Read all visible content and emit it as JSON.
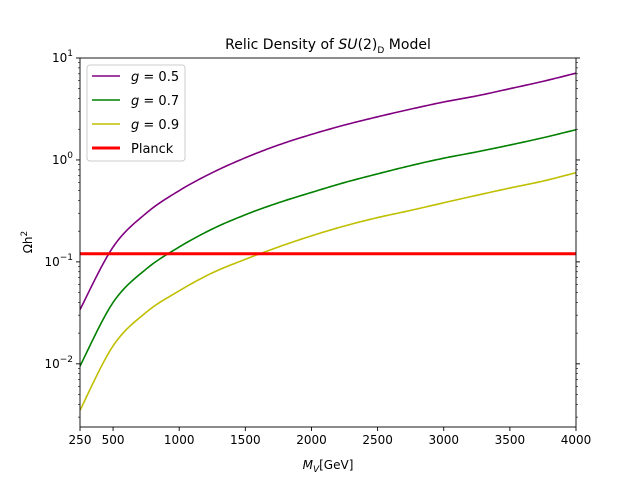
{
  "chart_data": {
    "type": "line",
    "title": {
      "prefix": "Relic Density of ",
      "math": "SU",
      "paren": "(2)",
      "sub": "D",
      "suffix": " Model"
    },
    "xlabel": {
      "math": "M",
      "sub": "V",
      "unit": "[GeV]"
    },
    "ylabel": {
      "main": "Ωh",
      "sup": "2"
    },
    "xlim": [
      250,
      4000
    ],
    "ylim": [
      0.0024,
      10
    ],
    "yscale": "log",
    "grid": false,
    "legend_position": "top-left",
    "xticks": [
      {
        "value": 250,
        "label": "250"
      },
      {
        "value": 500,
        "label": "500"
      },
      {
        "value": 1000,
        "label": "1000"
      },
      {
        "value": 1500,
        "label": "1500"
      },
      {
        "value": 2000,
        "label": "2000"
      },
      {
        "value": 2500,
        "label": "2500"
      },
      {
        "value": 3000,
        "label": "3000"
      },
      {
        "value": 3500,
        "label": "3500"
      },
      {
        "value": 4000,
        "label": "4000"
      }
    ],
    "yticks": [
      {
        "value": 0.01,
        "base": "10",
        "exp": "−2"
      },
      {
        "value": 0.1,
        "base": "10",
        "exp": "−1"
      },
      {
        "value": 1,
        "base": "10",
        "exp": "0"
      },
      {
        "value": 10,
        "base": "10",
        "exp": "1"
      }
    ],
    "x": [
      250,
      500,
      750,
      1000,
      1250,
      1500,
      1750,
      2000,
      2250,
      2500,
      2750,
      3000,
      3250,
      3500,
      3750,
      4000
    ],
    "series": [
      {
        "name": "g = 0.5",
        "math_lhs": "g",
        "rhs": " = 0.5",
        "color": "#800080",
        "values": [
          0.034,
          0.14,
          0.3,
          0.5,
          0.75,
          1.05,
          1.4,
          1.78,
          2.2,
          2.65,
          3.15,
          3.7,
          4.25,
          5.0,
          5.9,
          7.1
        ]
      },
      {
        "name": "g = 0.7",
        "math_lhs": "g",
        "rhs": " = 0.7",
        "color": "#008000",
        "values": [
          0.0095,
          0.04,
          0.085,
          0.14,
          0.21,
          0.29,
          0.38,
          0.48,
          0.6,
          0.73,
          0.88,
          1.04,
          1.2,
          1.4,
          1.65,
          1.98
        ]
      },
      {
        "name": "g = 0.9",
        "math_lhs": "g",
        "rhs": " = 0.9",
        "color": "#bfbf00",
        "values": [
          0.0035,
          0.015,
          0.032,
          0.052,
          0.078,
          0.106,
          0.14,
          0.18,
          0.225,
          0.272,
          0.32,
          0.38,
          0.45,
          0.53,
          0.62,
          0.75
        ]
      },
      {
        "name": "Planck",
        "math_lhs": "",
        "rhs": "Planck",
        "color": "#ff0000",
        "line_width": 3,
        "values": [
          0.12,
          0.12,
          0.12,
          0.12,
          0.12,
          0.12,
          0.12,
          0.12,
          0.12,
          0.12,
          0.12,
          0.12,
          0.12,
          0.12,
          0.12,
          0.12
        ]
      }
    ]
  }
}
